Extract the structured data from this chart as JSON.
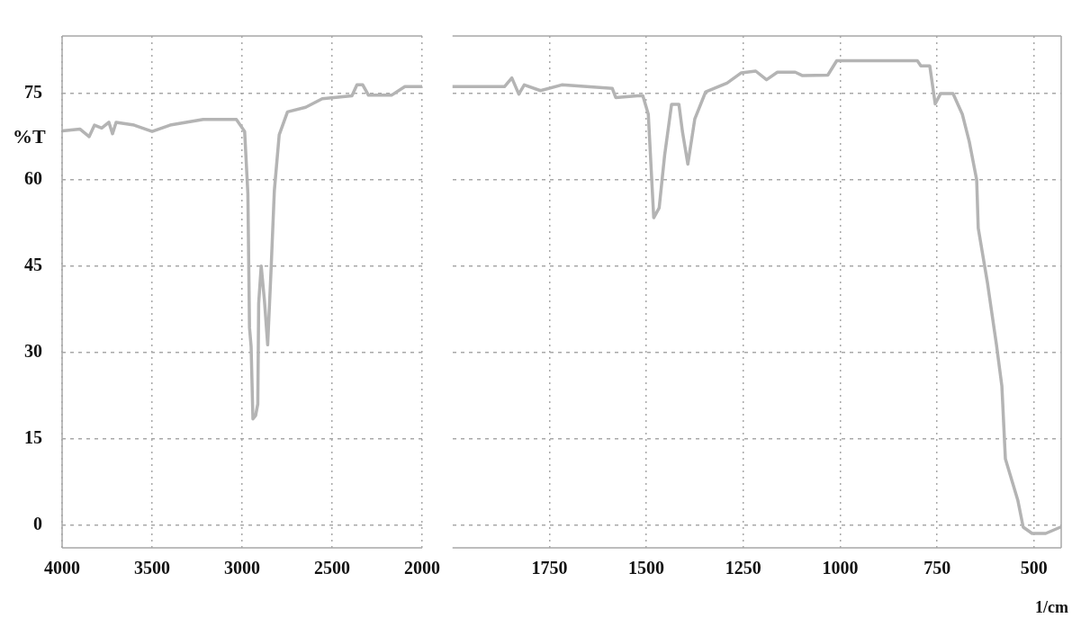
{
  "chart_data": [
    {
      "type": "line",
      "ylabel": "%T",
      "xlim": [
        4000,
        2000
      ],
      "xticks": [
        4000,
        3500,
        3000,
        2500,
        2000
      ],
      "ylim": [
        -4,
        85
      ],
      "yticks": [
        0,
        15,
        30,
        45,
        60,
        75
      ],
      "grid": true,
      "legend": false,
      "marker": "none",
      "line_style": "solid",
      "series": [
        {
          "color": "#b4b4b4",
          "x": [
            4000,
            3900,
            3850,
            3820,
            3780,
            3740,
            3720,
            3700,
            3600,
            3500,
            3400,
            3216,
            3032,
            2986,
            2968,
            2959,
            2950,
            2940,
            2925,
            2913,
            2908,
            2894,
            2876,
            2858,
            2839,
            2821,
            2794,
            2748,
            2647,
            2555,
            2390,
            2362,
            2330,
            2298,
            2170,
            2096,
            2000
          ],
          "values": [
            68.5,
            68.8,
            67.5,
            69.5,
            69,
            70,
            68,
            70,
            69.5,
            68.4,
            69.5,
            70.5,
            70.5,
            68.4,
            57.6,
            34.3,
            31,
            18.4,
            19,
            21,
            38.5,
            45,
            39,
            31.3,
            44.5,
            58.1,
            67.8,
            71.8,
            72.6,
            74.1,
            74.6,
            76.5,
            76.5,
            74.7,
            74.7,
            76.2,
            76.2
          ]
        }
      ]
    },
    {
      "type": "line",
      "xlabel": "1/cm",
      "xlim": [
        2000,
        430
      ],
      "xticks": [
        1750,
        1500,
        1250,
        1000,
        750,
        500
      ],
      "ylim": [
        -4,
        85
      ],
      "yticks": [
        0,
        15,
        30,
        45,
        60,
        75
      ],
      "tick_labels": "x",
      "grid": true,
      "legend": false,
      "marker": "none",
      "line_style": "solid",
      "series": [
        {
          "color": "#b4b4b4",
          "x": [
            2000,
            1866,
            1847,
            1829,
            1815,
            1773,
            1718,
            1588,
            1579,
            1523,
            1509,
            1495,
            1481,
            1467,
            1453,
            1435,
            1416,
            1407,
            1393,
            1375,
            1347,
            1292,
            1255,
            1218,
            1190,
            1162,
            1116,
            1097,
            1032,
            1009,
            801,
            792,
            769,
            755,
            741,
            709,
            685,
            667,
            648,
            644,
            620,
            597,
            583,
            574,
            542,
            528,
            505,
            470,
            432
          ],
          "values": [
            76.2,
            76.2,
            77.7,
            74.9,
            76.5,
            75.5,
            76.5,
            75.9,
            74.3,
            74.6,
            74.6,
            71.4,
            53.4,
            55.1,
            64.2,
            73.1,
            73.1,
            68.4,
            62.7,
            70.6,
            75.3,
            76.8,
            78.6,
            78.9,
            77.4,
            78.7,
            78.7,
            78.1,
            78.2,
            80.7,
            80.7,
            79.8,
            79.8,
            73.2,
            75,
            75,
            71.4,
            66.6,
            60,
            51.6,
            42,
            31.3,
            24.1,
            11.5,
            4.3,
            -0.4,
            -1.5,
            -1.5,
            -0.4
          ]
        }
      ]
    }
  ]
}
